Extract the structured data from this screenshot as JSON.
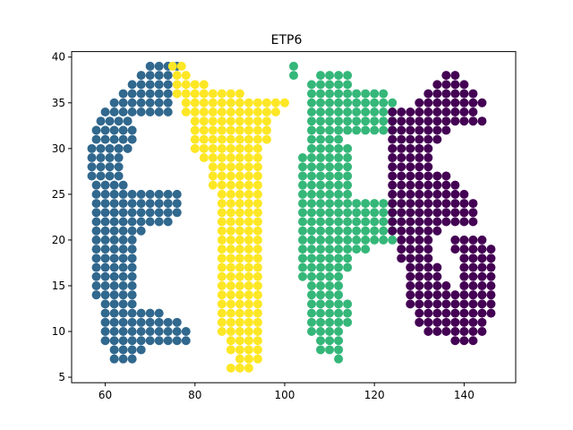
{
  "chart_data": {
    "type": "scatter",
    "title": "ETP6",
    "xlabel": "",
    "ylabel": "",
    "xlim": [
      52.5,
      151.5
    ],
    "ylim": [
      4.4,
      40.6
    ],
    "xticks": [
      60,
      80,
      100,
      120,
      140
    ],
    "yticks": [
      5,
      10,
      15,
      20,
      25,
      30,
      35,
      40
    ],
    "grid": false,
    "legend": "none",
    "marker_radius_px": 5,
    "series": [
      {
        "color": "#31688e",
        "rects": [
          [
            70,
            76,
            39,
            39
          ],
          [
            68,
            74,
            38,
            38
          ],
          [
            66,
            74,
            37,
            37
          ],
          [
            64,
            74,
            36,
            36
          ],
          [
            62,
            74,
            35,
            35
          ],
          [
            60,
            74,
            34,
            34
          ],
          [
            59,
            66,
            33,
            33
          ],
          [
            58,
            66,
            31,
            32
          ],
          [
            57,
            66,
            30,
            30
          ],
          [
            57,
            64,
            27,
            29
          ],
          [
            58,
            64,
            26,
            26
          ],
          [
            58,
            76,
            23,
            25
          ],
          [
            58,
            74,
            22,
            22
          ],
          [
            58,
            68,
            21,
            21
          ],
          [
            58,
            66,
            19,
            20
          ],
          [
            58,
            66,
            14,
            18
          ],
          [
            60,
            66,
            13,
            13
          ],
          [
            60,
            72,
            12,
            12
          ],
          [
            60,
            76,
            11,
            11
          ],
          [
            60,
            78,
            10,
            10
          ],
          [
            60,
            78,
            9,
            9
          ],
          [
            62,
            68,
            8,
            8
          ],
          [
            62,
            66,
            7,
            7
          ]
        ]
      },
      {
        "color": "#fde725",
        "rects": [
          [
            75,
            78,
            39,
            39
          ],
          [
            76,
            78,
            38,
            38
          ],
          [
            76,
            82,
            37,
            37
          ],
          [
            76,
            90,
            36,
            36
          ],
          [
            78,
            100,
            35,
            35
          ],
          [
            78,
            98,
            34,
            34
          ],
          [
            80,
            96,
            33,
            33
          ],
          [
            80,
            96,
            32,
            32
          ],
          [
            80,
            96,
            31,
            31
          ],
          [
            80,
            94,
            30,
            30
          ],
          [
            82,
            94,
            29,
            29
          ],
          [
            84,
            94,
            28,
            28
          ],
          [
            84,
            94,
            27,
            27
          ],
          [
            84,
            94,
            26,
            26
          ],
          [
            86,
            94,
            25,
            25
          ],
          [
            86,
            94,
            20,
            24
          ],
          [
            86,
            94,
            15,
            19
          ],
          [
            86,
            94,
            10,
            14
          ],
          [
            88,
            94,
            8,
            9
          ],
          [
            90,
            94,
            7,
            7
          ],
          [
            88,
            92,
            6,
            6
          ]
        ]
      },
      {
        "color": "#35b779",
        "rects": [
          [
            102,
            102,
            39,
            39
          ],
          [
            102,
            102,
            38,
            38
          ],
          [
            108,
            114,
            38,
            38
          ],
          [
            106,
            114,
            37,
            37
          ],
          [
            106,
            122,
            36,
            36
          ],
          [
            106,
            124,
            35,
            35
          ],
          [
            106,
            124,
            33,
            34
          ],
          [
            106,
            124,
            32,
            32
          ],
          [
            106,
            112,
            31,
            31
          ],
          [
            106,
            114,
            30,
            30
          ],
          [
            104,
            114,
            29,
            29
          ],
          [
            104,
            114,
            28,
            28
          ],
          [
            104,
            114,
            27,
            27
          ],
          [
            104,
            114,
            26,
            26
          ],
          [
            104,
            114,
            25,
            25
          ],
          [
            104,
            124,
            24,
            24
          ],
          [
            104,
            124,
            23,
            23
          ],
          [
            104,
            124,
            22,
            22
          ],
          [
            104,
            124,
            21,
            21
          ],
          [
            104,
            124,
            20,
            20
          ],
          [
            104,
            118,
            19,
            19
          ],
          [
            104,
            114,
            18,
            18
          ],
          [
            104,
            114,
            17,
            17
          ],
          [
            104,
            112,
            16,
            16
          ],
          [
            106,
            112,
            14,
            15
          ],
          [
            106,
            114,
            11,
            13
          ],
          [
            106,
            112,
            10,
            10
          ],
          [
            108,
            112,
            8,
            9
          ],
          [
            112,
            112,
            7,
            7
          ]
        ]
      },
      {
        "color": "#440154",
        "rects": [
          [
            136,
            138,
            38,
            38
          ],
          [
            134,
            140,
            37,
            37
          ],
          [
            132,
            142,
            36,
            36
          ],
          [
            130,
            144,
            35,
            35
          ],
          [
            124,
            142,
            34,
            34
          ],
          [
            124,
            144,
            33,
            33
          ],
          [
            124,
            136,
            32,
            32
          ],
          [
            124,
            134,
            31,
            31
          ],
          [
            124,
            132,
            30,
            30
          ],
          [
            124,
            132,
            29,
            29
          ],
          [
            124,
            132,
            28,
            28
          ],
          [
            124,
            136,
            27,
            27
          ],
          [
            124,
            138,
            26,
            26
          ],
          [
            124,
            140,
            25,
            25
          ],
          [
            124,
            142,
            24,
            24
          ],
          [
            124,
            142,
            23,
            23
          ],
          [
            124,
            142,
            22,
            22
          ],
          [
            124,
            134,
            21,
            21
          ],
          [
            126,
            132,
            20,
            20
          ],
          [
            138,
            144,
            20,
            20
          ],
          [
            126,
            132,
            19,
            19
          ],
          [
            138,
            146,
            19,
            19
          ],
          [
            126,
            132,
            18,
            18
          ],
          [
            140,
            146,
            18,
            18
          ],
          [
            128,
            134,
            17,
            17
          ],
          [
            140,
            146,
            17,
            17
          ],
          [
            128,
            134,
            16,
            16
          ],
          [
            140,
            146,
            16,
            16
          ],
          [
            128,
            136,
            15,
            15
          ],
          [
            140,
            146,
            15,
            15
          ],
          [
            128,
            146,
            14,
            14
          ],
          [
            128,
            146,
            13,
            13
          ],
          [
            130,
            146,
            12,
            12
          ],
          [
            130,
            144,
            11,
            11
          ],
          [
            132,
            144,
            10,
            10
          ],
          [
            138,
            142,
            9,
            9
          ]
        ]
      }
    ]
  }
}
